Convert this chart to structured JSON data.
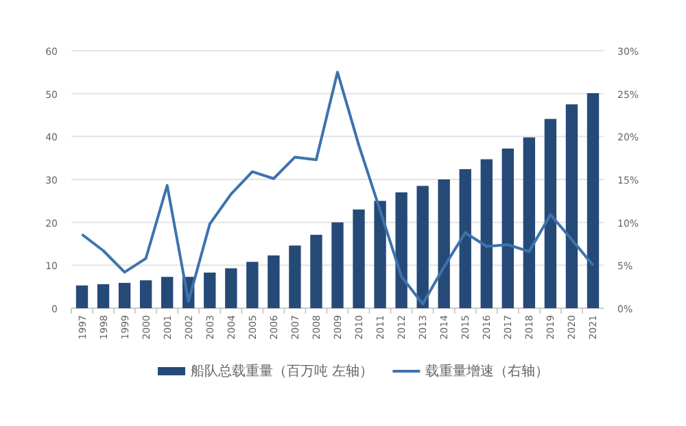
{
  "chart_data": {
    "type": "bar",
    "categories": [
      "1997",
      "1998",
      "1999",
      "2000",
      "2001",
      "2002",
      "2003",
      "2004",
      "2005",
      "2006",
      "2007",
      "2008",
      "2009",
      "2010",
      "2011",
      "2012",
      "2013",
      "2014",
      "2015",
      "2016",
      "2017",
      "2018",
      "2019",
      "2020",
      "2021"
    ],
    "series": [
      {
        "name": "船队总载重量（百万吨 左轴）",
        "color": "#264a78",
        "values": [
          5.3,
          5.6,
          5.9,
          6.5,
          7.3,
          7.3,
          8.3,
          9.3,
          10.8,
          12.3,
          14.6,
          17.1,
          20,
          23,
          25,
          27,
          28.5,
          30,
          32.4,
          34.7,
          37.2,
          39.8,
          44.1,
          47.5,
          50.1
        ]
      },
      {
        "name": "载重量增速（右轴）",
        "type": "line",
        "axis": "y2",
        "color": "#3d73ad",
        "values": [
          8.6,
          6.7,
          4.2,
          5.8,
          14.3,
          0.8,
          9.8,
          13.3,
          15.9,
          15.1,
          17.6,
          17.3,
          27.5,
          19,
          11.4,
          3.7,
          0.5,
          4.8,
          8.8,
          7.2,
          7.4,
          6.6,
          10.9,
          8.0,
          5.0
        ]
      }
    ],
    "ylim": [
      0,
      60
    ],
    "yticks": [
      0,
      10,
      20,
      30,
      40,
      50,
      60
    ],
    "y2lim": [
      0,
      30
    ],
    "y2ticks": [
      {
        "value": 0,
        "label": "0%"
      },
      {
        "value": 5,
        "label": "5%"
      },
      {
        "value": 10,
        "label": "10%"
      },
      {
        "value": 15,
        "label": "15%"
      },
      {
        "value": 20,
        "label": "20%"
      },
      {
        "value": 25,
        "label": "25%"
      },
      {
        "value": 30,
        "label": "30%"
      }
    ],
    "grid": "y",
    "legend": "bottom",
    "marker": "none",
    "line_style": "solid"
  }
}
